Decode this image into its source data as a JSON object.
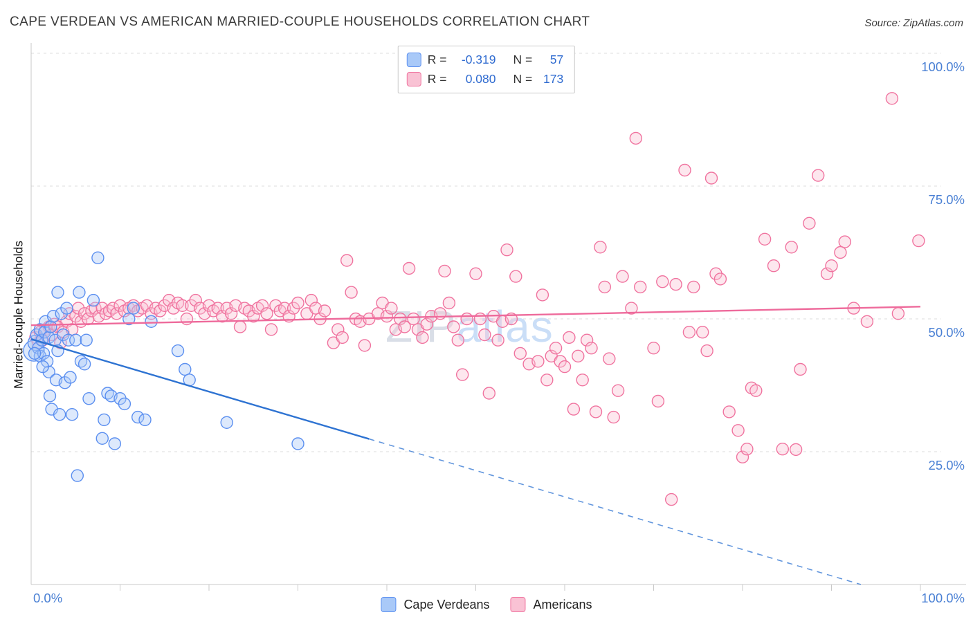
{
  "header": {
    "title": "CAPE VERDEAN VS AMERICAN MARRIED-COUPLE HOUSEHOLDS CORRELATION CHART",
    "source": "Source: ZipAtlas.com"
  },
  "watermark": {
    "part1": "ZIP",
    "part2": "atlas"
  },
  "legend": {
    "rows": [
      {
        "r_prefix": "R =",
        "r_value": "-0.319",
        "n_prefix": "N =",
        "n_value": "57"
      },
      {
        "r_prefix": "R =",
        "r_value": "0.080",
        "n_prefix": "N =",
        "n_value": "173"
      }
    ]
  },
  "colors": {
    "axis_text": "#4a80d4",
    "grid": "#dcdcdc",
    "axis_line": "#c9c9c9",
    "title_text": "#3b3b3b",
    "legend_value_blue": "#2f6bd0"
  },
  "chart_data": {
    "type": "scatter",
    "title": "CAPE VERDEAN VS AMERICAN MARRIED-COUPLE HOUSEHOLDS CORRELATION CHART",
    "xlabel": "",
    "ylabel": "Married-couple Households",
    "xlim": [
      0,
      100
    ],
    "ylim": [
      0,
      100
    ],
    "grid": "horizontal-dashed",
    "legend_position": "top-center-and-bottom-center",
    "x_axis": {
      "min_label": "0.0%",
      "max_label": "100.0%",
      "tick_step": 10
    },
    "y_axis": {
      "ticks": [
        {
          "v": 100,
          "label": "100.0%"
        },
        {
          "v": 75,
          "label": "75.0%"
        },
        {
          "v": 50,
          "label": "50.0%"
        },
        {
          "v": 25,
          "label": "25.0%"
        }
      ]
    },
    "series": [
      {
        "name": "Cape Verdeans",
        "R": -0.319,
        "N": 57,
        "stroke": "#5b8ff0",
        "fill": "#a9c9f8",
        "points": [
          [
            0.3,
            44,
            15
          ],
          [
            0.5,
            45.5,
            11
          ],
          [
            0.6,
            47
          ],
          [
            0.8,
            44.5
          ],
          [
            1,
            48
          ],
          [
            1,
            43
          ],
          [
            1.2,
            46
          ],
          [
            1.4,
            43.5
          ],
          [
            1.5,
            47.5
          ],
          [
            1.6,
            49.5
          ],
          [
            1.8,
            42
          ],
          [
            2,
            46.5
          ],
          [
            2,
            40
          ],
          [
            2.2,
            48.5
          ],
          [
            2.3,
            33
          ],
          [
            2.5,
            50.5
          ],
          [
            2.7,
            46
          ],
          [
            2.8,
            38.5
          ],
          [
            3,
            55
          ],
          [
            3,
            44
          ],
          [
            3.2,
            32
          ],
          [
            3.4,
            51
          ],
          [
            3.6,
            47
          ],
          [
            3.8,
            38
          ],
          [
            4,
            52
          ],
          [
            4.2,
            46
          ],
          [
            4.4,
            39
          ],
          [
            4.6,
            32
          ],
          [
            5,
            46
          ],
          [
            5.2,
            20.5
          ],
          [
            5.4,
            55
          ],
          [
            5.6,
            42
          ],
          [
            6,
            41.5
          ],
          [
            6.2,
            46
          ],
          [
            6.5,
            35
          ],
          [
            7,
            53.5
          ],
          [
            7.5,
            61.5
          ],
          [
            8,
            27.5
          ],
          [
            8.2,
            31
          ],
          [
            8.6,
            36
          ],
          [
            9,
            35.5
          ],
          [
            9.4,
            26.5
          ],
          [
            10,
            35
          ],
          [
            10.5,
            34
          ],
          [
            11,
            50
          ],
          [
            11.5,
            52
          ],
          [
            12,
            31.5
          ],
          [
            12.8,
            31
          ],
          [
            13.5,
            49.5
          ],
          [
            16.5,
            44
          ],
          [
            17.3,
            40.5
          ],
          [
            17.8,
            38.5
          ],
          [
            22,
            30.5
          ],
          [
            30,
            26.5
          ],
          [
            2.1,
            35.5
          ],
          [
            1.3,
            41
          ],
          [
            0.4,
            43.5
          ]
        ]
      },
      {
        "name": "Americans",
        "R": 0.08,
        "N": 173,
        "stroke": "#f0739f",
        "fill": "#f9c2d4",
        "points": [
          [
            0.5,
            46.5
          ],
          [
            0.8,
            45.5
          ],
          [
            1,
            47.5
          ],
          [
            1.3,
            46
          ],
          [
            1.6,
            48
          ],
          [
            2,
            48.5
          ],
          [
            2.3,
            47
          ],
          [
            2.6,
            49
          ],
          [
            3,
            48.5
          ],
          [
            3.3,
            45.5
          ],
          [
            3.6,
            47.5
          ],
          [
            4,
            49.5
          ],
          [
            4.3,
            51
          ],
          [
            4.6,
            48
          ],
          [
            5,
            50.5
          ],
          [
            5.3,
            52
          ],
          [
            5.6,
            49.5
          ],
          [
            6,
            51
          ],
          [
            6.4,
            50
          ],
          [
            6.8,
            51.5
          ],
          [
            7.2,
            52
          ],
          [
            7.6,
            50.5
          ],
          [
            8,
            52
          ],
          [
            8.4,
            51
          ],
          [
            8.8,
            51.5
          ],
          [
            9.2,
            52
          ],
          [
            9.6,
            51
          ],
          [
            10,
            52.5
          ],
          [
            10.5,
            51.5
          ],
          [
            11,
            52
          ],
          [
            11.5,
            52.5
          ],
          [
            12,
            51.5
          ],
          [
            12.5,
            52
          ],
          [
            13,
            52.5
          ],
          [
            13.5,
            51
          ],
          [
            14,
            52
          ],
          [
            14.5,
            51.5
          ],
          [
            15,
            52.5
          ],
          [
            15.5,
            53.5
          ],
          [
            16,
            52
          ],
          [
            16.5,
            53
          ],
          [
            17,
            52.5
          ],
          [
            17.5,
            50
          ],
          [
            18,
            52.5
          ],
          [
            18.5,
            53.5
          ],
          [
            19,
            52
          ],
          [
            19.5,
            51
          ],
          [
            20,
            52.5
          ],
          [
            20.5,
            51.5
          ],
          [
            21,
            52
          ],
          [
            21.5,
            50.5
          ],
          [
            22,
            52
          ],
          [
            22.5,
            51
          ],
          [
            23,
            52.5
          ],
          [
            23.5,
            48.5
          ],
          [
            24,
            52
          ],
          [
            24.5,
            51.5
          ],
          [
            25,
            50.5
          ],
          [
            25.5,
            52
          ],
          [
            26,
            52.5
          ],
          [
            26.5,
            51
          ],
          [
            27,
            48
          ],
          [
            27.5,
            52.5
          ],
          [
            28,
            51.5
          ],
          [
            28.5,
            52
          ],
          [
            29,
            50.5
          ],
          [
            29.5,
            52
          ],
          [
            30,
            53
          ],
          [
            92.5,
            52
          ],
          [
            31,
            51
          ],
          [
            31.5,
            53.5
          ],
          [
            32,
            52
          ],
          [
            32.5,
            50
          ],
          [
            33,
            51.5
          ],
          [
            94,
            49.5
          ],
          [
            34,
            45.5
          ],
          [
            34.5,
            48
          ],
          [
            35,
            46.5
          ],
          [
            35.5,
            61
          ],
          [
            36,
            55
          ],
          [
            36.5,
            50
          ],
          [
            37,
            49.5
          ],
          [
            37.5,
            45
          ],
          [
            38,
            50
          ],
          [
            96.8,
            91.5
          ],
          [
            39,
            51
          ],
          [
            39.5,
            53
          ],
          [
            40,
            50.5
          ],
          [
            40.5,
            52
          ],
          [
            41,
            48
          ],
          [
            41.5,
            50
          ],
          [
            42,
            48.5
          ],
          [
            42.5,
            59.5
          ],
          [
            43,
            50
          ],
          [
            43.5,
            48
          ],
          [
            44,
            46.5
          ],
          [
            44.5,
            49
          ],
          [
            45,
            50.5
          ],
          [
            99.8,
            64.7
          ],
          [
            46,
            51
          ],
          [
            46.5,
            59
          ],
          [
            47,
            53
          ],
          [
            47.5,
            48.5
          ],
          [
            48,
            46
          ],
          [
            48.5,
            39.5
          ],
          [
            49,
            50
          ],
          [
            97.5,
            51
          ],
          [
            50,
            58.5
          ],
          [
            50.5,
            50
          ],
          [
            51,
            47
          ],
          [
            51.5,
            36
          ],
          [
            52,
            50.5
          ],
          [
            52.5,
            46
          ],
          [
            53,
            49.5
          ],
          [
            53.5,
            63
          ],
          [
            54,
            50
          ],
          [
            54.5,
            58
          ],
          [
            55,
            43.5
          ],
          [
            86,
            25.4
          ],
          [
            56,
            41.5
          ],
          [
            89.5,
            58.5
          ],
          [
            57,
            42
          ],
          [
            57.5,
            54.5
          ],
          [
            58,
            38.5
          ],
          [
            58.5,
            43
          ],
          [
            59,
            44.5
          ],
          [
            59.5,
            42
          ],
          [
            60,
            41
          ],
          [
            60.5,
            46.5
          ],
          [
            61,
            33
          ],
          [
            61.5,
            43
          ],
          [
            62,
            38.5
          ],
          [
            62.5,
            46
          ],
          [
            63,
            44.5
          ],
          [
            63.5,
            32.5
          ],
          [
            64,
            63.5
          ],
          [
            64.5,
            56
          ],
          [
            65,
            42.5
          ],
          [
            65.5,
            31.5
          ],
          [
            66,
            36.5
          ],
          [
            66.5,
            58
          ],
          [
            67.5,
            52
          ],
          [
            68,
            84
          ],
          [
            68.5,
            56
          ],
          [
            91.5,
            64.5
          ],
          [
            70,
            44.5
          ],
          [
            70.5,
            34.5
          ],
          [
            71,
            57
          ],
          [
            72,
            16
          ],
          [
            72.5,
            56.5
          ],
          [
            73.5,
            78
          ],
          [
            74,
            47.5
          ],
          [
            74.5,
            56
          ],
          [
            75.5,
            47.5
          ],
          [
            76,
            44
          ],
          [
            76.5,
            76.5
          ],
          [
            77,
            58.5
          ],
          [
            77.5,
            57.5
          ],
          [
            78.5,
            32.5
          ],
          [
            79.5,
            29
          ],
          [
            80,
            24
          ],
          [
            80.5,
            25.5
          ],
          [
            81,
            37
          ],
          [
            81.5,
            36.5
          ],
          [
            82.5,
            65
          ],
          [
            83.5,
            60
          ],
          [
            84.5,
            25.5
          ],
          [
            85.5,
            63.5
          ],
          [
            86.5,
            40.5
          ],
          [
            87.5,
            68
          ],
          [
            88.5,
            77
          ],
          [
            90,
            60
          ],
          [
            91,
            62.5
          ]
        ]
      }
    ],
    "trendlines": [
      {
        "series": "Cape Verdeans",
        "color": "#2e73d2",
        "solid": [
          [
            0,
            46.2
          ],
          [
            38,
            27.4
          ]
        ],
        "dashed": [
          [
            38,
            27.4
          ],
          [
            93.3,
            0
          ]
        ]
      },
      {
        "series": "Americans",
        "color": "#ee6a9b",
        "solid": [
          [
            0,
            48.8
          ],
          [
            100,
            52.3
          ]
        ]
      }
    ]
  }
}
